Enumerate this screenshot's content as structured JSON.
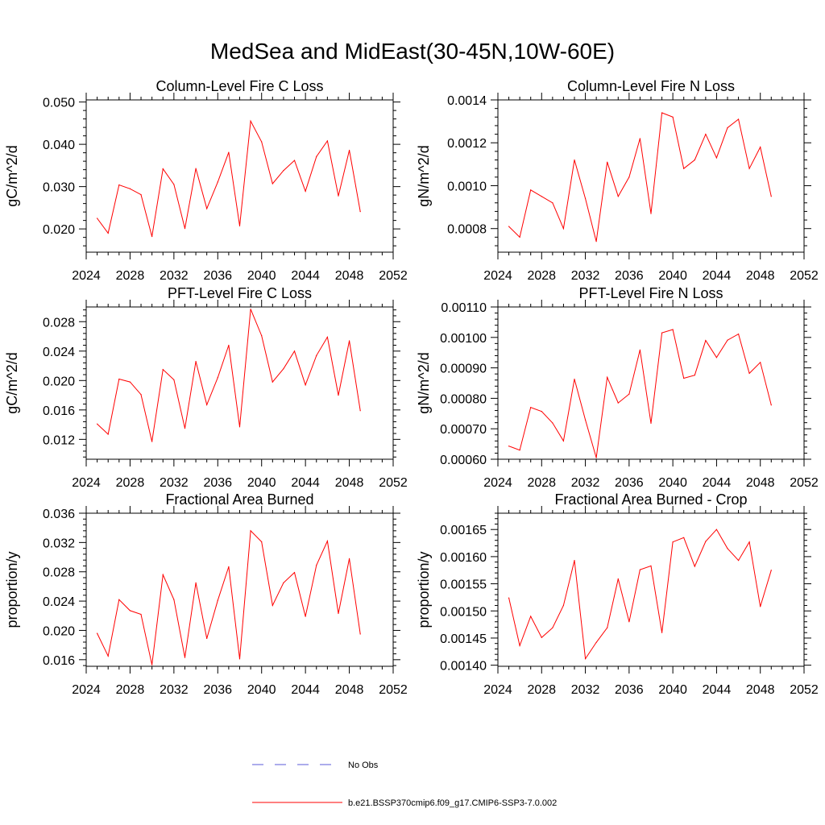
{
  "title": "MedSea and MidEast(30-45N,10W-60E)",
  "legend": {
    "obs_label": "No Obs",
    "model_label": "b.e21.BSSP370cmip6.f09_g17.CMIP6-SSP3-7.0.002",
    "obs_color": "#5a5ad8",
    "model_color": "#ff0000"
  },
  "chart_data": [
    {
      "type": "line",
      "title": "Column-Level Fire C Loss",
      "ylabel": "gC/m^2/d",
      "xlim": [
        2024,
        2052
      ],
      "ylim": [
        0.0145,
        0.0505
      ],
      "xticks": [
        2024,
        2028,
        2032,
        2036,
        2040,
        2044,
        2048,
        2052
      ],
      "yticks": [
        0.02,
        0.03,
        0.04,
        0.05
      ],
      "ytick_labels": [
        "0.020",
        "0.030",
        "0.040",
        "0.050"
      ],
      "x": [
        2025,
        2026,
        2027,
        2028,
        2029,
        2030,
        2031,
        2032,
        2033,
        2034,
        2035,
        2036,
        2037,
        2038,
        2039,
        2040,
        2041,
        2042,
        2043,
        2044,
        2045,
        2046,
        2047,
        2048,
        2049
      ],
      "series": [
        {
          "values": [
            0.0225,
            0.019,
            0.0304,
            0.0295,
            0.0281,
            0.0182,
            0.0342,
            0.0305,
            0.0201,
            0.0343,
            0.0248,
            0.0311,
            0.0381,
            0.0207,
            0.0455,
            0.0406,
            0.0307,
            0.0338,
            0.0362,
            0.0289,
            0.0371,
            0.0408,
            0.0278,
            0.0386,
            0.0241
          ]
        }
      ]
    },
    {
      "type": "line",
      "title": "Column-Level Fire N Loss",
      "ylabel": "gN/m^2/d",
      "xlim": [
        2024,
        2052
      ],
      "ylim": [
        0.00069,
        0.0014
      ],
      "xticks": [
        2024,
        2028,
        2032,
        2036,
        2040,
        2044,
        2048,
        2052
      ],
      "yticks": [
        0.0008,
        0.001,
        0.0012,
        0.0014
      ],
      "ytick_labels": [
        "0.0008",
        "0.0010",
        "0.0012",
        "0.0014"
      ],
      "x": [
        2025,
        2026,
        2027,
        2028,
        2029,
        2030,
        2031,
        2032,
        2033,
        2034,
        2035,
        2036,
        2037,
        2038,
        2039,
        2040,
        2041,
        2042,
        2043,
        2044,
        2045,
        2046,
        2047,
        2048,
        2049
      ],
      "series": [
        {
          "values": [
            0.00081,
            0.00076,
            0.00098,
            0.00095,
            0.00092,
            0.0008,
            0.00112,
            0.00094,
            0.00074,
            0.00111,
            0.00095,
            0.00104,
            0.00122,
            0.00087,
            0.00134,
            0.00132,
            0.00108,
            0.00112,
            0.00124,
            0.00113,
            0.00127,
            0.00131,
            0.00108,
            0.00118,
            0.00095
          ]
        }
      ]
    },
    {
      "type": "line",
      "title": "PFT-Level Fire C Loss",
      "ylabel": "gC/m^2/d",
      "xlim": [
        2024,
        2052
      ],
      "ylim": [
        0.0093,
        0.03
      ],
      "xticks": [
        2024,
        2028,
        2032,
        2036,
        2040,
        2044,
        2048,
        2052
      ],
      "yticks": [
        0.012,
        0.016,
        0.02,
        0.024,
        0.028
      ],
      "ytick_labels": [
        "0.012",
        "0.016",
        "0.020",
        "0.024",
        "0.028"
      ],
      "x": [
        2025,
        2026,
        2027,
        2028,
        2029,
        2030,
        2031,
        2032,
        2033,
        2034,
        2035,
        2036,
        2037,
        2038,
        2039,
        2040,
        2041,
        2042,
        2043,
        2044,
        2045,
        2046,
        2047,
        2048,
        2049
      ],
      "series": [
        {
          "values": [
            0.0141,
            0.0127,
            0.0202,
            0.0198,
            0.0181,
            0.0117,
            0.0215,
            0.0201,
            0.0135,
            0.0226,
            0.0167,
            0.0204,
            0.0248,
            0.0137,
            0.0297,
            0.0261,
            0.0198,
            0.0216,
            0.024,
            0.0194,
            0.0234,
            0.0259,
            0.018,
            0.0254,
            0.0159
          ]
        }
      ]
    },
    {
      "type": "line",
      "title": "PFT-Level Fire N Loss",
      "ylabel": "gN/m^2/d",
      "xlim": [
        2024,
        2052
      ],
      "ylim": [
        0.0006,
        0.0011
      ],
      "xticks": [
        2024,
        2028,
        2032,
        2036,
        2040,
        2044,
        2048,
        2052
      ],
      "yticks": [
        0.0006,
        0.0007,
        0.0008,
        0.0009,
        0.001,
        0.0011
      ],
      "ytick_labels": [
        "0.00060",
        "0.00070",
        "0.00080",
        "0.00090",
        "0.00100",
        "0.00110"
      ],
      "x": [
        2025,
        2026,
        2027,
        2028,
        2029,
        2030,
        2031,
        2032,
        2033,
        2034,
        2035,
        2036,
        2037,
        2038,
        2039,
        2040,
        2041,
        2042,
        2043,
        2044,
        2045,
        2046,
        2047,
        2048,
        2049
      ],
      "series": [
        {
          "values": [
            0.000643,
            0.00063,
            0.00077,
            0.000757,
            0.000719,
            0.00066,
            0.000863,
            0.000729,
            0.000605,
            0.000869,
            0.000785,
            0.000814,
            0.000959,
            0.000718,
            0.001015,
            0.001026,
            0.000866,
            0.000876,
            0.00099,
            0.000934,
            0.000991,
            0.001011,
            0.000882,
            0.000918,
            0.000778
          ]
        }
      ]
    },
    {
      "type": "line",
      "title": "Fractional Area Burned",
      "ylabel": "proportion/y",
      "xlim": [
        2024,
        2052
      ],
      "ylim": [
        0.0151,
        0.036
      ],
      "xticks": [
        2024,
        2028,
        2032,
        2036,
        2040,
        2044,
        2048,
        2052
      ],
      "yticks": [
        0.016,
        0.02,
        0.024,
        0.028,
        0.032,
        0.036
      ],
      "ytick_labels": [
        "0.016",
        "0.020",
        "0.024",
        "0.028",
        "0.032",
        "0.036"
      ],
      "x": [
        2025,
        2026,
        2027,
        2028,
        2029,
        2030,
        2031,
        2032,
        2033,
        2034,
        2035,
        2036,
        2037,
        2038,
        2039,
        2040,
        2041,
        2042,
        2043,
        2044,
        2045,
        2046,
        2047,
        2048,
        2049
      ],
      "series": [
        {
          "values": [
            0.0196,
            0.0165,
            0.0242,
            0.0227,
            0.0222,
            0.0153,
            0.0276,
            0.0242,
            0.0163,
            0.0265,
            0.0189,
            0.0241,
            0.0287,
            0.0161,
            0.0336,
            0.0321,
            0.0234,
            0.0265,
            0.0279,
            0.0219,
            0.0289,
            0.0322,
            0.0223,
            0.0298,
            0.0195
          ]
        }
      ]
    },
    {
      "type": "line",
      "title": "Fractional Area Burned - Crop",
      "ylabel": "proportion/y",
      "xlim": [
        2024,
        2052
      ],
      "ylim": [
        0.001398,
        0.00168
      ],
      "xticks": [
        2024,
        2028,
        2032,
        2036,
        2040,
        2044,
        2048,
        2052
      ],
      "yticks": [
        0.0014,
        0.00145,
        0.0015,
        0.00155,
        0.0016,
        0.00165
      ],
      "ytick_labels": [
        "0.00140",
        "0.00145",
        "0.00150",
        "0.00155",
        "0.00160",
        "0.00165"
      ],
      "x": [
        2025,
        2026,
        2027,
        2028,
        2029,
        2030,
        2031,
        2032,
        2033,
        2034,
        2035,
        2036,
        2037,
        2038,
        2039,
        2040,
        2041,
        2042,
        2043,
        2044,
        2045,
        2046,
        2047,
        2048,
        2049
      ],
      "series": [
        {
          "values": [
            0.001524,
            0.001436,
            0.00149,
            0.001451,
            0.001469,
            0.00151,
            0.001593,
            0.001412,
            0.001442,
            0.001469,
            0.001559,
            0.00148,
            0.001576,
            0.001583,
            0.00146,
            0.001627,
            0.001635,
            0.001582,
            0.001628,
            0.00165,
            0.001615,
            0.001593,
            0.001627,
            0.001508,
            0.001575
          ]
        }
      ]
    }
  ]
}
